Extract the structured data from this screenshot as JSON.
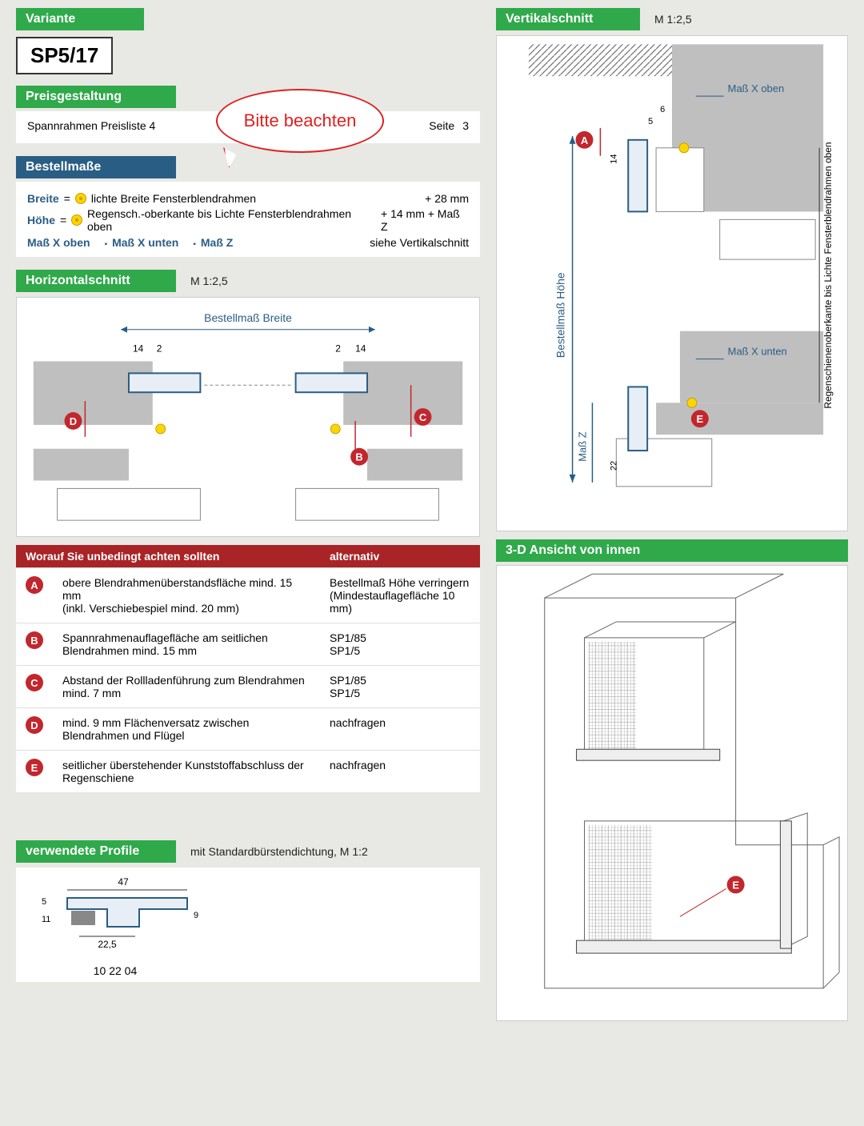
{
  "colors": {
    "green": "#2fa94a",
    "blue": "#2a5d84",
    "red_hdr": "#a82427",
    "red_circle": "#c1272d",
    "bubble_red": "#e02020",
    "yellow": "#ffd400",
    "bg": "#e8e8e4",
    "panel": "#ffffff",
    "grey_profile": "#bfbfbf"
  },
  "variante": {
    "header": "Variante",
    "code": "SP5/17"
  },
  "preis": {
    "header": "Preisgestaltung",
    "text": "Spannrahmen   Preisliste 4",
    "page_label": "Seite",
    "page_no": "3",
    "bubble": "Bitte beachten"
  },
  "bestell": {
    "header": "Bestellmaße",
    "breite_key": "Breite",
    "breite_txt": "lichte Breite Fensterblendrahmen",
    "breite_add": "+  28 mm",
    "hoehe_key": "Höhe",
    "hoehe_txt": "Regensch.-oberkante bis Lichte Fensterblendrahmen oben",
    "hoehe_add": "+ 14 mm  +  Maß Z",
    "foot1": "Maß X oben",
    "foot2": "Maß X unten",
    "foot3": "Maß Z",
    "foot_right": "siehe Vertikalschnitt"
  },
  "hschnitt": {
    "header": "Horizontalschnitt",
    "scale": "M 1:2,5",
    "label_breite": "Bestellmaß Breite",
    "dims": {
      "l14": "14",
      "l2": "2",
      "r2": "2",
      "r14": "14"
    },
    "markers": {
      "B": "B",
      "C": "C",
      "D": "D"
    }
  },
  "vschnitt": {
    "header": "Vertikalschnitt",
    "scale": "M 1:2,5",
    "labels": {
      "mx_oben": "Maß X\noben",
      "mx_unten": "Maß X\nunten",
      "bm_hoehe": "Bestellmaß Höhe",
      "mass_z": "Maß Z",
      "rs_txt": "Regenschienenoberkante bis\nLichte Fensterblendrahmen oben"
    },
    "dims": {
      "d6": "6",
      "d5": "5",
      "d14": "14",
      "d22": "22"
    },
    "markers": {
      "A": "A",
      "E": "E"
    }
  },
  "achten": {
    "header_l": "Worauf Sie unbedingt achten sollten",
    "header_r": "alternativ",
    "rows": [
      {
        "m": "A",
        "l": "obere Blendrahmenüberstandsfläche mind. 15 mm\n(inkl. Verschiebespiel mind. 20 mm)",
        "r": "Bestellmaß Höhe verringern (Mindestauflagefläche 10 mm)"
      },
      {
        "m": "B",
        "l": "Spannrahmenauflagefläche am seitlichen Blendrahmen mind. 15 mm",
        "r": "SP1/85\nSP1/5"
      },
      {
        "m": "C",
        "l": "Abstand der Rollladenführung zum Blendrahmen mind. 7 mm",
        "r": "SP1/85\nSP1/5"
      },
      {
        "m": "D",
        "l": "mind. 9 mm Flächenversatz zwischen Blendrahmen und Flügel",
        "r": "nachfragen"
      },
      {
        "m": "E",
        "l": "seitlicher überstehender Kunststoff­abschluss der Regenschiene",
        "r": "nachfragen"
      }
    ]
  },
  "profile": {
    "header": "verwendete Profile",
    "sub": "mit Standardbürstendichtung, M 1:2",
    "dims": {
      "w47": "47",
      "h5": "5",
      "h11": "11",
      "h9": "9",
      "w225": "22,5"
    },
    "code": "10 22 04"
  },
  "view3d": {
    "header": "3-D Ansicht von innen",
    "marker": "E"
  }
}
